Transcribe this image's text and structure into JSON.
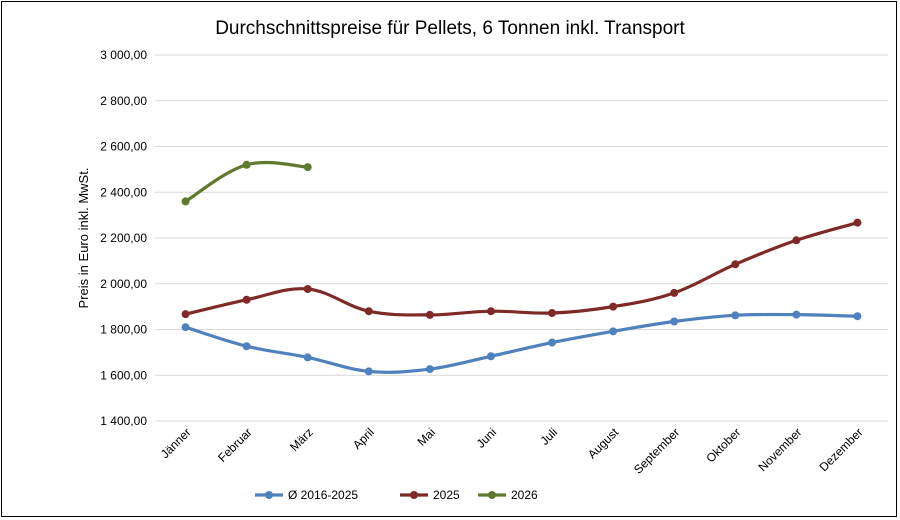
{
  "chart_data": {
    "type": "line",
    "title": "Durchschnittspreise für Pellets, 6 Tonnen inkl. Transport",
    "xlabel": "",
    "ylabel": "Preis in Euro inkl. MwSt.",
    "categories": [
      "Jänner",
      "Februar",
      "März",
      "April",
      "Mai",
      "Juni",
      "Juli",
      "August",
      "September",
      "Oktober",
      "November",
      "Dezember"
    ],
    "ylim": [
      1400,
      3000
    ],
    "yticks": [
      1400,
      1600,
      1800,
      2000,
      2200,
      2400,
      2600,
      2800,
      3000
    ],
    "ytick_labels": [
      "1 400,00",
      "1 600,00",
      "1 800,00",
      "2 000,00",
      "2 200,00",
      "2 400,00",
      "2 600,00",
      "2 800,00",
      "3 000,00"
    ],
    "grid": true,
    "legend_position": "bottom",
    "series": [
      {
        "name": "Ø 2016-2025",
        "color": "#4f81bd",
        "values": [
          1810,
          1727,
          1678,
          1617,
          1627,
          1683,
          1743,
          1792,
          1835,
          1862,
          1865,
          1858
        ]
      },
      {
        "name": "2025",
        "color": "#7f2a27",
        "values": [
          1867,
          1930,
          1977,
          1880,
          1864,
          1880,
          1872,
          1900,
          1960,
          2085,
          2190,
          2267
        ]
      },
      {
        "name": "2026",
        "color": "#5f7a2e",
        "values": [
          2360,
          2520,
          2510,
          null,
          null,
          null,
          null,
          null,
          null,
          null,
          null,
          null
        ]
      }
    ]
  }
}
